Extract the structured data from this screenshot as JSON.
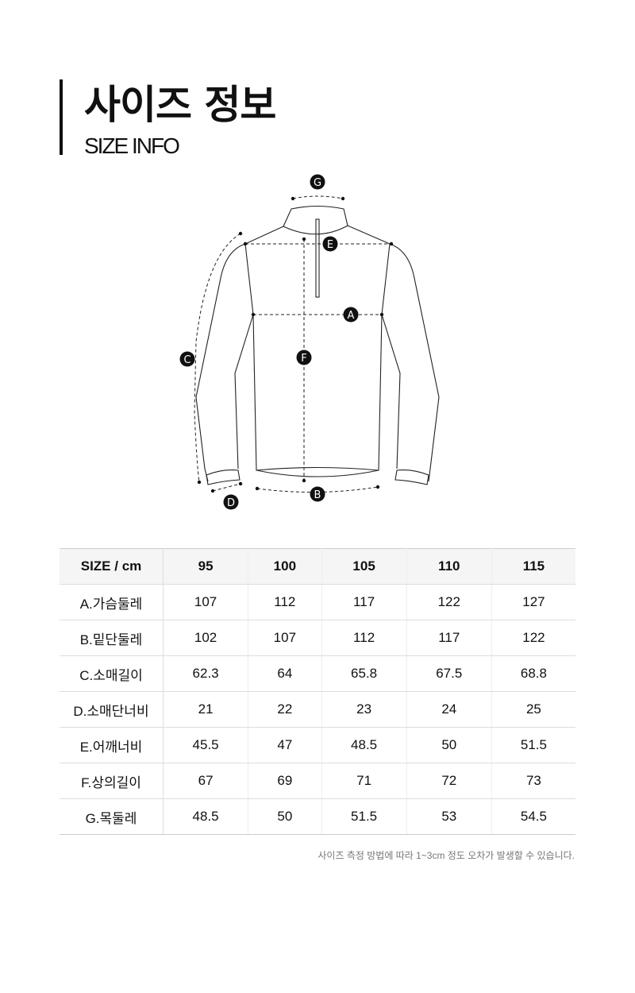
{
  "header": {
    "title": "사이즈 정보",
    "subtitle": "SIZE INFO"
  },
  "diagram": {
    "labels": {
      "A": "A",
      "B": "B",
      "C": "C",
      "D": "D",
      "E": "E",
      "F": "F",
      "G": "G"
    }
  },
  "table": {
    "headers": [
      "SIZE / cm",
      "95",
      "100",
      "105",
      "110",
      "115"
    ],
    "rows": [
      [
        "A.가슴둘레",
        "107",
        "112",
        "117",
        "122",
        "127"
      ],
      [
        "B.밑단둘레",
        "102",
        "107",
        "112",
        "117",
        "122"
      ],
      [
        "C.소매길이",
        "62.3",
        "64",
        "65.8",
        "67.5",
        "68.8"
      ],
      [
        "D.소매단너비",
        "21",
        "22",
        "23",
        "24",
        "25"
      ],
      [
        "E.어깨너비",
        "45.5",
        "47",
        "48.5",
        "50",
        "51.5"
      ],
      [
        "F.상의길이",
        "67",
        "69",
        "71",
        "72",
        "73"
      ],
      [
        "G.목둘레",
        "48.5",
        "50",
        "51.5",
        "53",
        "54.5"
      ]
    ]
  },
  "note": "사이즈 측정 방법에 따라 1~3cm 정도 오차가 발생할 수 있습니다."
}
